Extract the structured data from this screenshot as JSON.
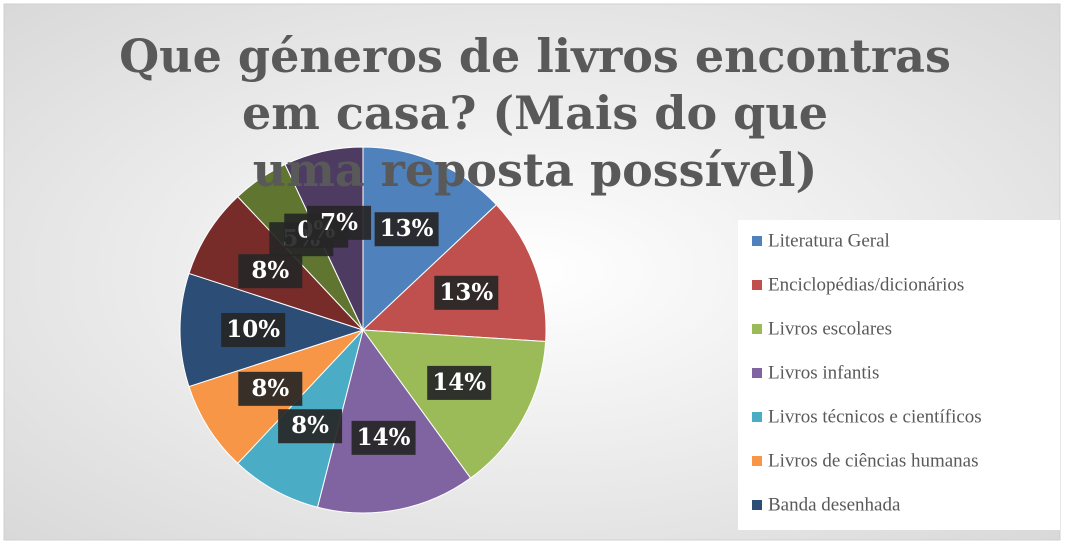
{
  "chart_data": {
    "type": "pie",
    "title": "Que géneros de livros encontras em casa? (Mais do que uma reposta possível)",
    "categories": [
      "Literatura Geral",
      "Enciclopédias/dicionários",
      "Livros escolares",
      "Livros infantis",
      "Livros técnicos e científicos",
      "Livros de ciências humanas",
      "Banda desenhada",
      null,
      null,
      null,
      null
    ],
    "values": [
      13,
      13,
      14,
      14,
      8,
      8,
      10,
      8,
      5,
      0,
      7
    ],
    "value_labels": [
      "13%",
      "13%",
      "14%",
      "14%",
      "8%",
      "8%",
      "10%",
      "8%",
      "5%",
      "0%",
      "7%"
    ],
    "colors": [
      "#4f81bd",
      "#c0504d",
      "#9bbb59",
      "#8064a2",
      "#4bacc6",
      "#f79646",
      "#2c4d75",
      "#772c2a",
      "#5f7530",
      "#276a7c",
      "#4d3b62"
    ],
    "legend": "right"
  }
}
